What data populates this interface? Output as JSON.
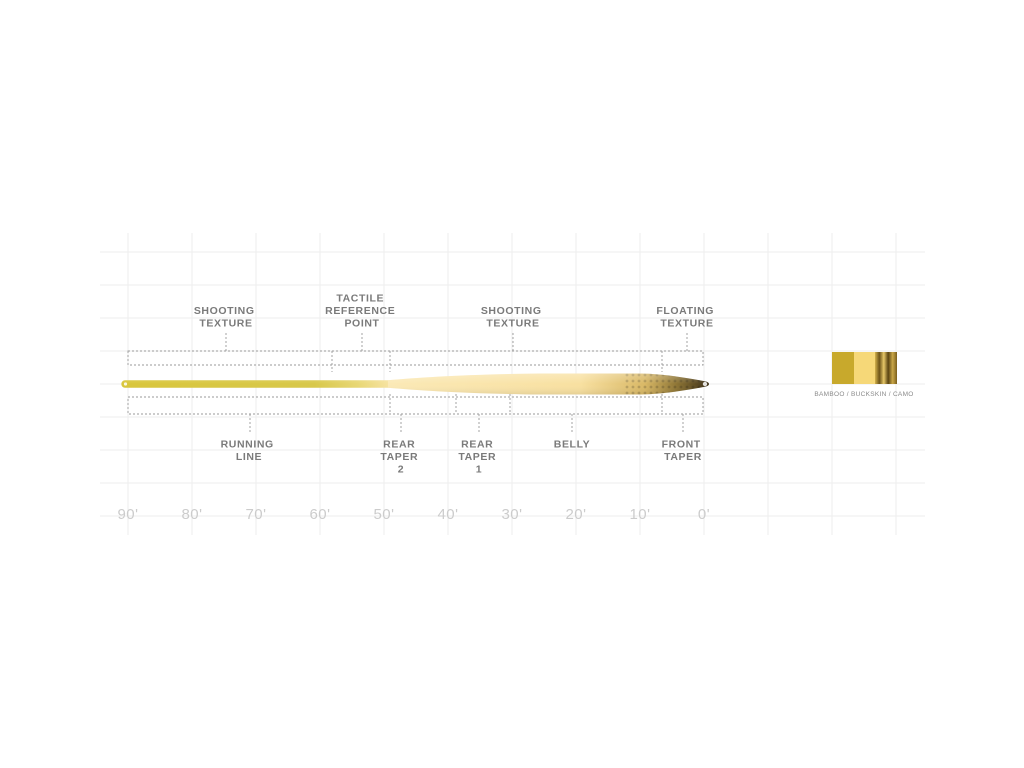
{
  "top_labels": [
    {
      "id": "shooting-texture-rear",
      "lines": [
        "SHOOTING",
        "TEXTURE"
      ]
    },
    {
      "id": "tactile-reference-point",
      "lines": [
        "TACTILE",
        "REFERENCE",
        "POINT"
      ]
    },
    {
      "id": "shooting-texture-front",
      "lines": [
        "SHOOTING",
        "TEXTURE"
      ]
    },
    {
      "id": "floating-texture",
      "lines": [
        "FLOATING",
        "TEXTURE"
      ]
    }
  ],
  "bottom_labels": [
    {
      "id": "running-line",
      "lines": [
        "RUNNING",
        "LINE"
      ]
    },
    {
      "id": "rear-taper-2",
      "lines": [
        "REAR",
        "TAPER",
        "2"
      ]
    },
    {
      "id": "rear-taper-1",
      "lines": [
        "REAR",
        "TAPER",
        "1"
      ]
    },
    {
      "id": "belly",
      "lines": [
        "BELLY"
      ]
    },
    {
      "id": "front-taper",
      "lines": [
        "FRONT",
        "TAPER"
      ]
    }
  ],
  "distance_marks": [
    "90'",
    "80'",
    "70'",
    "60'",
    "50'",
    "40'",
    "30'",
    "20'",
    "10'",
    "0'"
  ],
  "swatch": {
    "label": "BAMBOO / BUCKSKIN / CAMO",
    "colors": {
      "bamboo": "#c8a92c",
      "buckskin": "#f6d878",
      "camo": "#8a6a1e"
    }
  },
  "colors": {
    "running_line": "#d6c23c",
    "head": "#f9e4a6",
    "floating_tip": "#6f5a2a",
    "label_text": "#7a7a7a",
    "distance_text": "#cccccc"
  }
}
